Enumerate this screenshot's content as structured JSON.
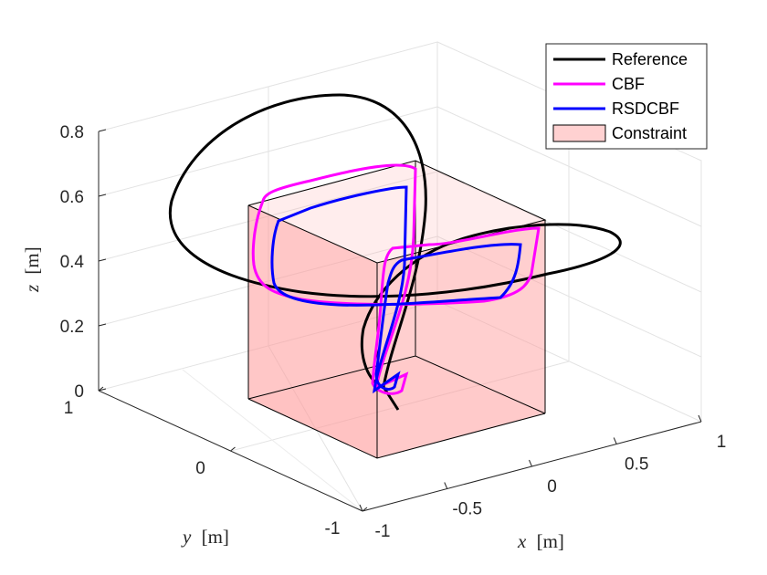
{
  "chart_data": {
    "type": "line3d",
    "title": "",
    "xlabel": {
      "var": "x",
      "unit": "[m]"
    },
    "ylabel": {
      "var": "y",
      "unit": "[m]"
    },
    "zlabel": {
      "var": "z",
      "unit": "[m]"
    },
    "xlim": [
      -1,
      1
    ],
    "ylim": [
      -1,
      1
    ],
    "zlim": [
      0,
      0.8
    ],
    "x_ticks": [
      {
        "v": -1,
        "label": "-1"
      },
      {
        "v": -0.5,
        "label": "-0.5"
      },
      {
        "v": 0,
        "label": "0"
      },
      {
        "v": 0.5,
        "label": "0.5"
      },
      {
        "v": 1,
        "label": "1"
      }
    ],
    "y_ticks": [
      {
        "v": -1,
        "label": "-1"
      },
      {
        "v": 0,
        "label": "0"
      },
      {
        "v": 1,
        "label": "1"
      }
    ],
    "z_ticks": [
      {
        "v": 0,
        "label": "0"
      },
      {
        "v": 0.2,
        "label": "0.2"
      },
      {
        "v": 0.4,
        "label": "0.4"
      },
      {
        "v": 0.6,
        "label": "0.6"
      },
      {
        "v": 0.8,
        "label": "0.8"
      }
    ],
    "grid": true,
    "legend_position": "top-right",
    "legend": [
      {
        "label": "Reference",
        "color": "#000000",
        "kind": "line"
      },
      {
        "label": "CBF",
        "color": "#ff00ff",
        "kind": "line"
      },
      {
        "label": "RSDCBF",
        "color": "#0000ff",
        "kind": "line"
      },
      {
        "label": "Constraint",
        "color": "#ff9999",
        "kind": "patch"
      }
    ],
    "constraint_box": {
      "x": [
        -0.4,
        0.4
      ],
      "y": [
        -0.4,
        0.4
      ],
      "z": [
        0,
        0.55
      ],
      "color": "#ff9999",
      "alpha": 0.4
    },
    "series": [
      {
        "name": "Reference",
        "color": "#000000",
        "points": [
          [
            -0.3,
            0,
            0
          ],
          [
            -0.35,
            0.3,
            0.35
          ],
          [
            -0.55,
            0.55,
            0.75
          ],
          [
            -0.9,
            0.75,
            0.55
          ],
          [
            -0.85,
            0.65,
            0.35
          ],
          [
            -0.2,
            0.2,
            0.3
          ],
          [
            0.55,
            -0.2,
            0.35
          ],
          [
            0.85,
            -0.45,
            0.45
          ],
          [
            0.3,
            -0.55,
            0.35
          ],
          [
            -0.1,
            -0.25,
            0.05
          ],
          [
            -0.3,
            0,
            0
          ]
        ]
      },
      {
        "name": "CBF",
        "color": "#ff00ff",
        "points": [
          [
            -0.3,
            0,
            0.02
          ],
          [
            -0.25,
            0.15,
            0.5
          ],
          [
            -0.1,
            0.35,
            0.55
          ],
          [
            -0.4,
            0.4,
            0.55
          ],
          [
            -0.4,
            0.3,
            0.35
          ],
          [
            0,
            0,
            0.35
          ],
          [
            0.4,
            -0.3,
            0.35
          ],
          [
            0.4,
            -0.4,
            0.55
          ],
          [
            0.05,
            -0.45,
            0.55
          ],
          [
            -0.2,
            -0.1,
            0.1
          ],
          [
            -0.3,
            0,
            0.02
          ]
        ]
      },
      {
        "name": "RSDCBF",
        "color": "#0000ff",
        "points": [
          [
            -0.28,
            0.02,
            0.02
          ],
          [
            -0.22,
            0.15,
            0.45
          ],
          [
            -0.15,
            0.25,
            0.5
          ],
          [
            -0.38,
            0.35,
            0.48
          ],
          [
            -0.35,
            0.28,
            0.35
          ],
          [
            0,
            0,
            0.35
          ],
          [
            0.35,
            -0.28,
            0.35
          ],
          [
            0.35,
            -0.35,
            0.5
          ],
          [
            0.05,
            -0.4,
            0.5
          ],
          [
            -0.18,
            -0.1,
            0.1
          ],
          [
            -0.28,
            0.02,
            0.02
          ]
        ]
      }
    ]
  }
}
